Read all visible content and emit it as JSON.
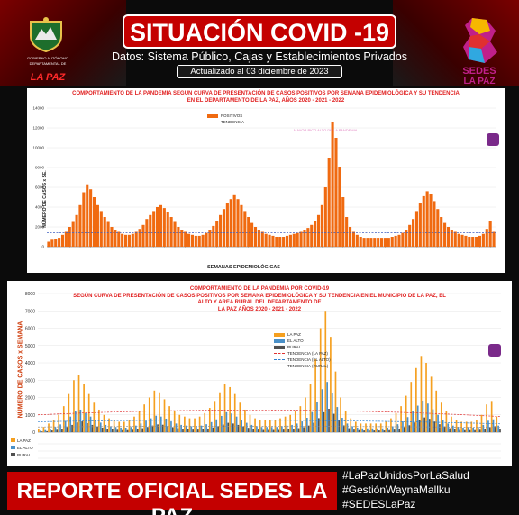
{
  "header": {
    "title": "SITUACIÓN COVID -19",
    "subtitle": "Datos: Sistema Público, Cajas y Establecimientos Privados",
    "updated": "Actualizado al 03 diciembre de 2023",
    "logo_left_line1": "GOBIERNO AUTÓNOMO",
    "logo_left_line2": "DEPARTAMENTAL DE",
    "logo_left_big": "LA PAZ",
    "logo_right_line1": "SEDES",
    "logo_right_line2": "LA PAZ"
  },
  "colors": {
    "accent_red": "#c40000",
    "bar_orange": "#f06a10",
    "trend_pink": "#e080c0",
    "lapaz_bar": "#f5a020",
    "elalto_bar": "#4a90c8",
    "rural_bar": "#505050"
  },
  "chart_data": [
    {
      "type": "bar",
      "title_line1": "COMPORTAMIENTO DE LA PANDEMIA SEGUN CURVA DE PRESENTACIÓN DE CASOS POSITIVOS POR SEMANA EPIDEMIOLÓGICA Y SU TENDENCIA",
      "title_line2": "EN EL DEPARTAMENTO DE LA PAZ, AÑOS 2020 - 2021 - 2022",
      "ylabel": "NÚMERO DE CASOS x SE.",
      "xlabel": "SEMANAS EPIDEMIOLÓGICAS",
      "ylim": [
        0,
        14000
      ],
      "yticks": [
        0,
        2000,
        4000,
        6000,
        8000,
        10000,
        12000,
        14000
      ],
      "legend": [
        "POSITIVOS",
        "TENDENCIA"
      ],
      "annotation": "MAYOR PICO ALTO DE LA PANDEMIA",
      "series": [
        {
          "name": "POSITIVOS",
          "values": [
            500,
            700,
            800,
            900,
            1200,
            1500,
            2000,
            2500,
            3200,
            4200,
            5500,
            6300,
            5800,
            5000,
            4200,
            3600,
            3000,
            2500,
            2000,
            1700,
            1500,
            1300,
            1200,
            1200,
            1300,
            1500,
            1800,
            2200,
            2800,
            3200,
            3600,
            4000,
            4200,
            3900,
            3500,
            3000,
            2500,
            2000,
            1700,
            1500,
            1300,
            1200,
            1100,
            1100,
            1200,
            1400,
            1700,
            2100,
            2600,
            3200,
            3800,
            4400,
            4800,
            5200,
            4800,
            4200,
            3600,
            3000,
            2400,
            2000,
            1700,
            1500,
            1300,
            1200,
            1100,
            1000,
            1000,
            1000,
            1100,
            1200,
            1300,
            1400,
            1500,
            1700,
            1900,
            2200,
            2600,
            3200,
            4200,
            6000,
            9000,
            12600,
            11000,
            8000,
            5000,
            3000,
            2000,
            1500,
            1200,
            1000,
            900,
            900,
            900,
            900,
            900,
            900,
            900,
            900,
            1000,
            1100,
            1200,
            1400,
            1700,
            2200,
            2800,
            3600,
            4400,
            5100,
            5600,
            5300,
            4600,
            3800,
            3000,
            2400,
            2000,
            1700,
            1500,
            1300,
            1200,
            1100,
            1000,
            1000,
            1000,
            1100,
            1300,
            1800,
            2600,
            1500
          ]
        }
      ],
      "trend_level": 1400
    },
    {
      "type": "bar",
      "title_line1": "COMPORTAMIENTO DE LA PANDEMIA POR COVID-19",
      "title_line2": "SEGÚN CURVA DE PRESENTACIÓN DE CASOS POSITIVOS POR SEMANA EPIDEMIOLÓGICA Y SU TENDENCIA EN EL  MUNICIPIO DE LA PAZ, EL",
      "title_line3": "ALTO Y AREA RURAL DEL DEPARTAMENTO DE",
      "title_line4": "LA PAZ AÑOS 2020 - 2021 - 2022",
      "ylabel": "NÚMERO DE CASOS x SEMANA",
      "ylim": [
        0,
        8000
      ],
      "yticks": [
        0,
        1000,
        2000,
        3000,
        4000,
        5000,
        6000,
        7000,
        8000
      ],
      "legend": [
        "LA PAZ",
        "EL ALTO",
        "RURAL",
        "TENDENCIA (LA PAZ)",
        "TENDENCIA (EL ALTO)",
        "TENDENCIA (RURAL)"
      ],
      "row_labels": [
        "LA PAZ",
        "EL ALTO",
        "RURAL"
      ],
      "series": [
        {
          "name": "LA PAZ",
          "values": [
            200,
            300,
            500,
            700,
            1000,
            1500,
            2200,
            3000,
            3300,
            2800,
            2200,
            1700,
            1300,
            1000,
            800,
            700,
            600,
            600,
            700,
            900,
            1200,
            1600,
            2000,
            2400,
            2300,
            1900,
            1500,
            1200,
            1000,
            900,
            800,
            800,
            900,
            1100,
            1400,
            1800,
            2300,
            2800,
            2600,
            2200,
            1700,
            1300,
            1000,
            800,
            700,
            700,
            700,
            700,
            800,
            900,
            1000,
            1200,
            1500,
            2000,
            2800,
            4200,
            6000,
            7000,
            5500,
            3500,
            2000,
            1200,
            800,
            600,
            500,
            500,
            500,
            500,
            500,
            600,
            800,
            1100,
            1500,
            2100,
            2900,
            3700,
            4400,
            4000,
            3200,
            2400,
            1700,
            1200,
            900,
            700,
            600,
            600,
            600,
            700,
            1000,
            1600,
            1800,
            900
          ]
        },
        {
          "name": "EL ALTO",
          "values": [
            80,
            120,
            200,
            300,
            450,
            650,
            900,
            1200,
            1300,
            1100,
            900,
            700,
            550,
            420,
            340,
            300,
            260,
            260,
            300,
            380,
            500,
            650,
            800,
            950,
            900,
            780,
            620,
            500,
            420,
            380,
            340,
            340,
            380,
            460,
            580,
            740,
            940,
            1150,
            1080,
            900,
            700,
            540,
            420,
            340,
            300,
            300,
            300,
            300,
            340,
            380,
            420,
            500,
            620,
            830,
            1160,
            1740,
            2480,
            2900,
            2280,
            1450,
            830,
            500,
            340,
            260,
            220,
            220,
            220,
            220,
            220,
            260,
            340,
            460,
            620,
            870,
            1200,
            1530,
            1820,
            1650,
            1320,
            1000,
            700,
            500,
            380,
            300,
            260,
            260,
            260,
            300,
            420,
            660,
            740,
            380
          ]
        },
        {
          "name": "RURAL",
          "values": [
            40,
            60,
            100,
            140,
            200,
            300,
            420,
            560,
            620,
            520,
            420,
            330,
            260,
            200,
            160,
            140,
            120,
            120,
            140,
            170,
            230,
            300,
            380,
            450,
            430,
            360,
            290,
            230,
            190,
            170,
            150,
            150,
            170,
            210,
            270,
            340,
            440,
            540,
            500,
            420,
            330,
            250,
            190,
            150,
            130,
            130,
            130,
            130,
            150,
            170,
            190,
            230,
            290,
            380,
            540,
            810,
            1150,
            1350,
            1060,
            680,
            390,
            230,
            150,
            120,
            100,
            100,
            100,
            100,
            100,
            120,
            150,
            210,
            290,
            400,
            560,
            710,
            850,
            770,
            610,
            460,
            330,
            230,
            170,
            130,
            120,
            120,
            120,
            140,
            190,
            300,
            340,
            170
          ]
        }
      ],
      "trend_levels": {
        "la_paz": 1000,
        "el_alto": 600,
        "rural": 300
      }
    }
  ],
  "footer": {
    "label": "REPORTE OFICIAL SEDES LA PAZ",
    "hashtags": [
      "#LaPazUnidosPorLaSalud",
      "#GestiónWaynaMallku",
      "#SEDESLaPaz"
    ]
  }
}
